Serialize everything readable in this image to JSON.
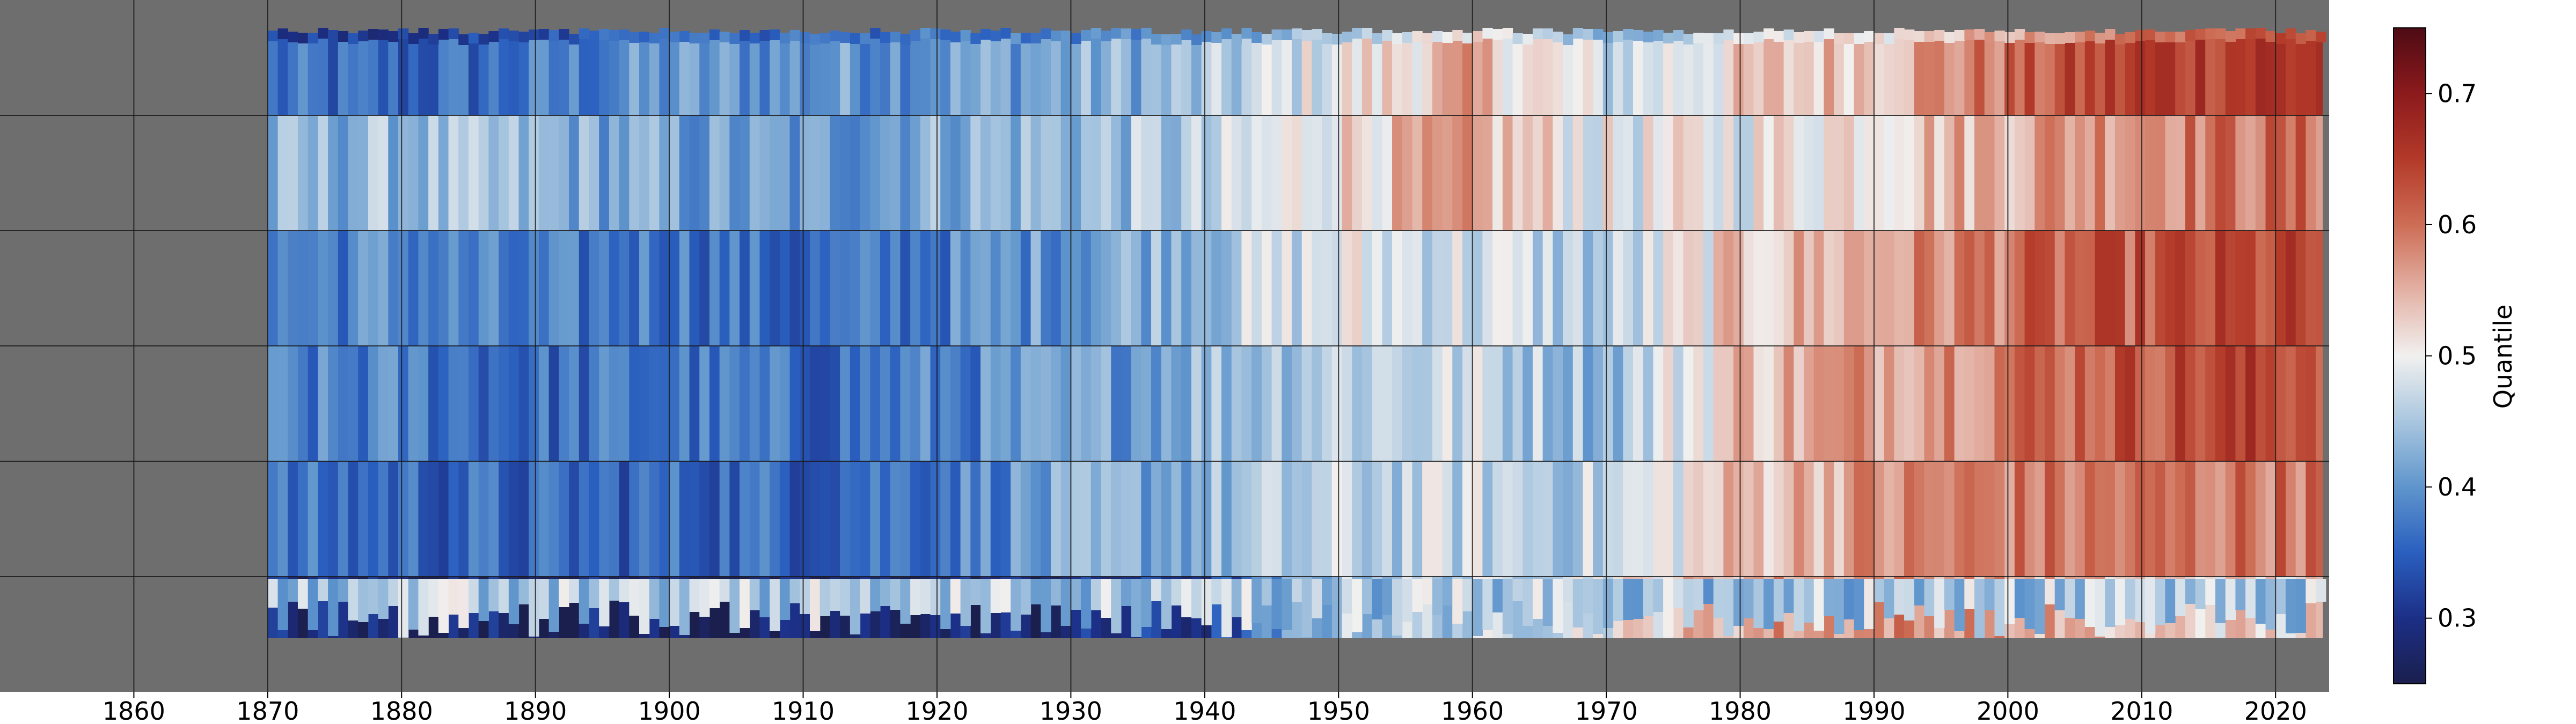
{
  "chart_data": {
    "type": "heatmap",
    "title": "",
    "xlabel": "",
    "ylabel": "",
    "x_ticks": [
      1860,
      1870,
      1880,
      1890,
      1900,
      1910,
      1920,
      1930,
      1940,
      1950,
      1960,
      1970,
      1980,
      1990,
      2000,
      2010,
      2020
    ],
    "xlim": [
      1850,
      2024
    ],
    "data_start_year": 1870,
    "data_end_year": 2023.5,
    "y_ticks_shown": false,
    "grid": true,
    "n_rows": 6,
    "colormap": "dark-blue-white-dark-red (diverging)",
    "no_data_color": "#6e6e6e",
    "colorbar": {
      "label": "Quantile",
      "ticks": [
        0.3,
        0.4,
        0.5,
        0.6,
        0.7
      ],
      "range": [
        0.25,
        0.75
      ],
      "position": "right"
    },
    "row_values": {
      "years": [
        1870,
        1880,
        1890,
        1900,
        1910,
        1920,
        1930,
        1940,
        1950,
        1960,
        1970,
        1980,
        1990,
        2000,
        2010,
        2020
      ],
      "rows": [
        [
          0.36,
          0.35,
          0.37,
          0.4,
          0.4,
          0.41,
          0.42,
          0.44,
          0.5,
          0.55,
          0.47,
          0.52,
          0.55,
          0.6,
          0.65,
          0.66
        ],
        [
          0.42,
          0.44,
          0.43,
          0.41,
          0.4,
          0.43,
          0.44,
          0.45,
          0.52,
          0.55,
          0.49,
          0.5,
          0.53,
          0.56,
          0.59,
          0.6
        ],
        [
          0.38,
          0.39,
          0.36,
          0.38,
          0.35,
          0.38,
          0.41,
          0.45,
          0.49,
          0.48,
          0.45,
          0.53,
          0.56,
          0.6,
          0.62,
          0.63
        ],
        [
          0.37,
          0.38,
          0.36,
          0.37,
          0.36,
          0.38,
          0.4,
          0.44,
          0.47,
          0.47,
          0.44,
          0.54,
          0.57,
          0.6,
          0.63,
          0.64
        ],
        [
          0.36,
          0.36,
          0.35,
          0.36,
          0.36,
          0.38,
          0.41,
          0.43,
          0.46,
          0.47,
          0.46,
          0.54,
          0.57,
          0.59,
          0.59,
          0.6
        ],
        [
          0.29,
          0.28,
          0.28,
          0.27,
          0.26,
          0.28,
          0.29,
          0.31,
          0.45,
          0.46,
          0.5,
          0.56,
          0.58,
          0.56,
          0.53,
          0.52
        ]
      ]
    },
    "colorbar_stops": [
      [
        0.25,
        "#1b1f4e"
      ],
      [
        0.3,
        "#1c2f86"
      ],
      [
        0.35,
        "#2a5fbf"
      ],
      [
        0.4,
        "#5f95cc"
      ],
      [
        0.45,
        "#a9c6df"
      ],
      [
        0.5,
        "#f1f0ef"
      ],
      [
        0.55,
        "#e3b1a4"
      ],
      [
        0.6,
        "#cd6d55"
      ],
      [
        0.65,
        "#b33a29"
      ],
      [
        0.7,
        "#8c1a1c"
      ],
      [
        0.75,
        "#4e0b14"
      ]
    ]
  }
}
